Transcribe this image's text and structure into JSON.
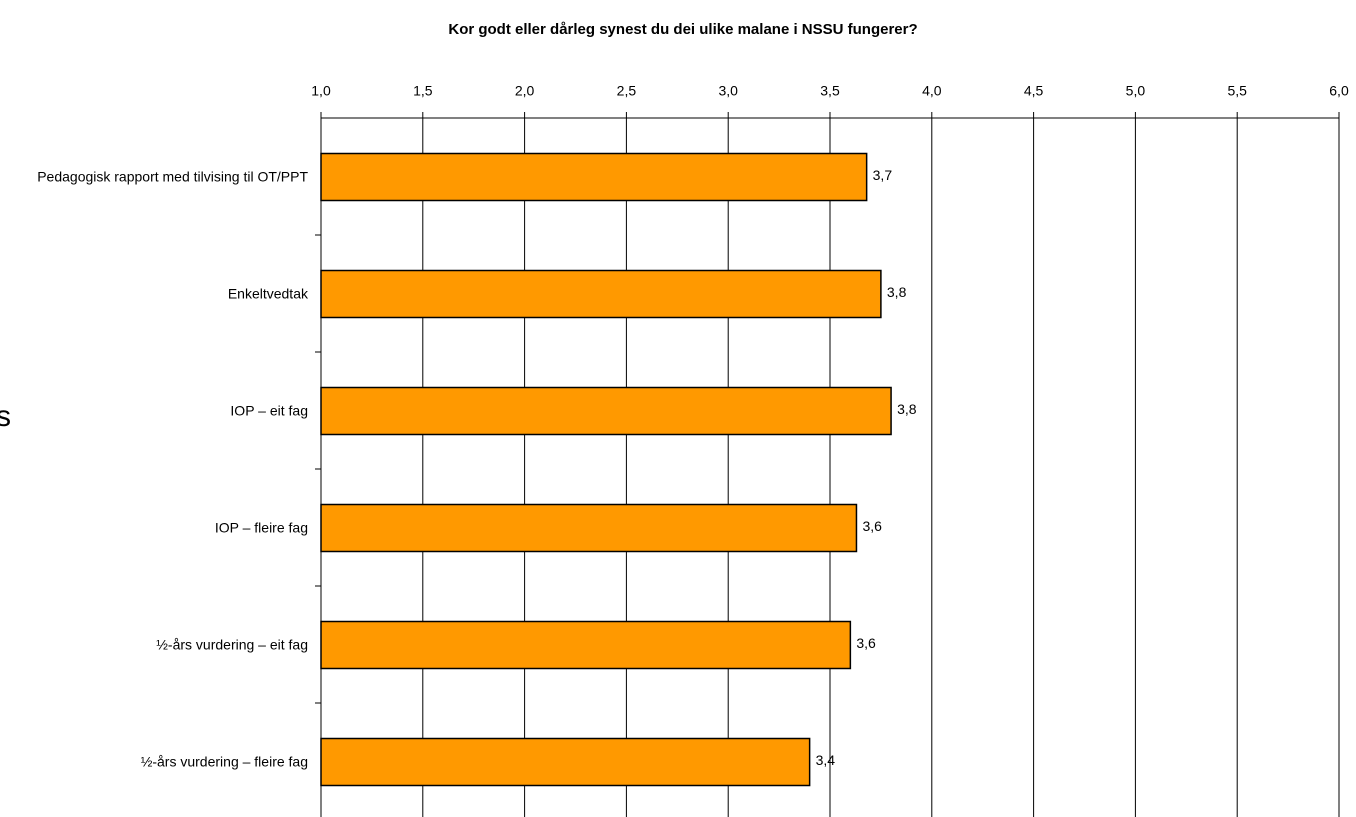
{
  "chart_data": {
    "type": "bar",
    "orientation": "horizontal",
    "title": "Kor godt eller dårleg synest du dei ulike malane i NSSU fungerer?",
    "side_text": "s",
    "categories": [
      "Pedagogisk rapport med tilvising til OT/PPT",
      "Enkeltvedtak",
      "IOP – eit fag",
      "IOP – fleire fag",
      "½-års vurdering – eit fag",
      "½-års vurdering – fleire fag"
    ],
    "values": [
      3.68,
      3.75,
      3.8,
      3.63,
      3.6,
      3.4
    ],
    "value_labels": [
      "3,7",
      "3,8",
      "3,8",
      "3,6",
      "3,6",
      "3,4"
    ],
    "color": "#ff9900",
    "xlim": [
      1,
      6
    ],
    "xticks": [
      {
        "value": 1,
        "label": "1,0"
      },
      {
        "value": 1.5,
        "label": "1,5"
      },
      {
        "value": 2,
        "label": "2,0"
      },
      {
        "value": 2.5,
        "label": "2,5"
      },
      {
        "value": 3,
        "label": "3,0"
      },
      {
        "value": 3.5,
        "label": "3,5"
      },
      {
        "value": 4,
        "label": "4,0"
      },
      {
        "value": 4.5,
        "label": "4,5"
      },
      {
        "value": 5,
        "label": "5,0"
      },
      {
        "value": 5.5,
        "label": "5,5"
      },
      {
        "value": 6,
        "label": "6,0"
      }
    ],
    "grid": true
  }
}
